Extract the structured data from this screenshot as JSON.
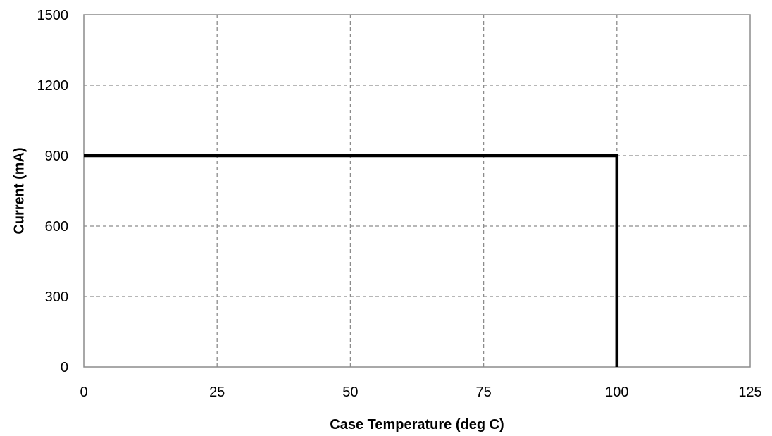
{
  "chart_data": {
    "type": "line",
    "title": "",
    "xlabel": "Case Temperature (deg C)",
    "ylabel": "Current (mA)",
    "xlim": [
      0,
      125
    ],
    "ylim": [
      0,
      1500
    ],
    "x_ticks": [
      0,
      25,
      50,
      75,
      100,
      125
    ],
    "y_ticks": [
      0,
      300,
      600,
      900,
      1200,
      1500
    ],
    "grid": true,
    "grid_style": "dashed",
    "legend": "none",
    "series": [
      {
        "x": [
          0,
          100,
          100
        ],
        "y": [
          900,
          900,
          0
        ],
        "color": "#000000"
      }
    ]
  }
}
